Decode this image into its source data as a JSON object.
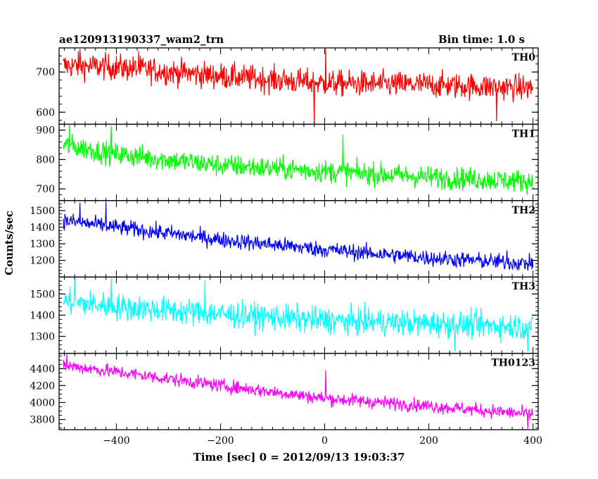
{
  "header": {
    "title": "ae120913190337_wam2_trn",
    "bin_time": "Bin time: 1.0 s"
  },
  "chart_data": {
    "type": "line",
    "title": "ae120913190337_wam2_trn",
    "subtitle": "Bin time: 1.0 s",
    "xlabel": "Time [sec] 0 = 2012/09/13 19:03:37",
    "ylabel": "Counts/sec",
    "xlim": [
      -510,
      410
    ],
    "x_start": -502,
    "x_end": 400,
    "x_step": 1,
    "xticks": [
      -400,
      -200,
      0,
      200,
      400
    ],
    "xtick_labels": [
      "−400",
      "−200",
      "0",
      "200",
      "400"
    ],
    "grid": false,
    "panels": [
      {
        "name": "TH0",
        "color": "#ff0000",
        "ylim": [
          570,
          760
        ],
        "yticks": [
          600,
          700
        ],
        "ytick_labels": [
          "600",
          "700"
        ],
        "trend": [
          {
            "x": -502,
            "y": 716
          },
          {
            "x": -400,
            "y": 712
          },
          {
            "x": -200,
            "y": 690
          },
          {
            "x": 0,
            "y": 672
          },
          {
            "x": 200,
            "y": 668
          },
          {
            "x": 400,
            "y": 660
          }
        ],
        "scatter": 32,
        "spikes": [
          {
            "x": -470,
            "y": 757
          },
          {
            "x": -357,
            "y": 752
          },
          {
            "x": -20,
            "y": 570
          },
          {
            "x": 2,
            "y": 758
          },
          {
            "x": 330,
            "y": 578
          }
        ]
      },
      {
        "name": "TH1",
        "color": "#00ff00",
        "ylim": [
          660,
          920
        ],
        "yticks": [
          700,
          800,
          900
        ],
        "ytick_labels": [
          "700",
          "800",
          "900"
        ],
        "trend": [
          {
            "x": -502,
            "y": 850
          },
          {
            "x": -400,
            "y": 818
          },
          {
            "x": -200,
            "y": 780
          },
          {
            "x": 0,
            "y": 760
          },
          {
            "x": 200,
            "y": 740
          },
          {
            "x": 400,
            "y": 725
          }
        ],
        "scatter": 38,
        "spikes": [
          {
            "x": -490,
            "y": 918
          },
          {
            "x": -410,
            "y": 915
          },
          {
            "x": 35,
            "y": 885
          }
        ]
      },
      {
        "name": "TH2",
        "color": "#0000ff",
        "ylim": [
          1100,
          1560
        ],
        "yticks": [
          1200,
          1300,
          1400,
          1500
        ],
        "ytick_labels": [
          "1200",
          "1300",
          "1400",
          "1500"
        ],
        "trend": [
          {
            "x": -502,
            "y": 1440
          },
          {
            "x": -400,
            "y": 1400
          },
          {
            "x": -200,
            "y": 1325
          },
          {
            "x": 0,
            "y": 1265
          },
          {
            "x": 200,
            "y": 1215
          },
          {
            "x": 400,
            "y": 1180
          }
        ],
        "scatter": 48,
        "spikes": [
          {
            "x": -470,
            "y": 1548
          },
          {
            "x": -420,
            "y": 1545
          },
          {
            "x": 350,
            "y": 1260
          }
        ]
      },
      {
        "name": "TH3",
        "color": "#00ffff",
        "ylim": [
          1220,
          1580
        ],
        "yticks": [
          1300,
          1400,
          1500
        ],
        "ytick_labels": [
          "1300",
          "1400",
          "1500"
        ],
        "trend": [
          {
            "x": -502,
            "y": 1465
          },
          {
            "x": -400,
            "y": 1440
          },
          {
            "x": -200,
            "y": 1405
          },
          {
            "x": 0,
            "y": 1375
          },
          {
            "x": 200,
            "y": 1360
          },
          {
            "x": 400,
            "y": 1345
          }
        ],
        "scatter": 62,
        "spikes": [
          {
            "x": -480,
            "y": 1570
          },
          {
            "x": -410,
            "y": 1575
          },
          {
            "x": -230,
            "y": 1565
          },
          {
            "x": 250,
            "y": 1230
          },
          {
            "x": 390,
            "y": 1228
          }
        ]
      },
      {
        "name": "TH0123",
        "color": "#ff00ff",
        "ylim": [
          3680,
          4580
        ],
        "yticks": [
          3800,
          4000,
          4200,
          4400
        ],
        "ytick_labels": [
          "3800",
          "4000",
          "4200",
          "4400"
        ],
        "trend": [
          {
            "x": -502,
            "y": 4440
          },
          {
            "x": -400,
            "y": 4360
          },
          {
            "x": -200,
            "y": 4200
          },
          {
            "x": 0,
            "y": 4050
          },
          {
            "x": 200,
            "y": 3960
          },
          {
            "x": 400,
            "y": 3860
          }
        ],
        "scatter": 78,
        "spikes": [
          {
            "x": -495,
            "y": 4570
          },
          {
            "x": 2,
            "y": 4380
          },
          {
            "x": 390,
            "y": 3690
          }
        ]
      }
    ]
  }
}
